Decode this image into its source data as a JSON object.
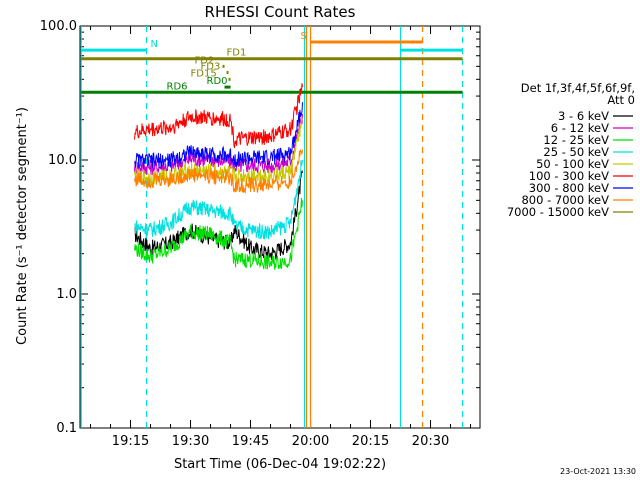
{
  "chart_data": {
    "type": "line",
    "title": "RHESSI Count Rates",
    "xlabel": "Start Time (06-Dec-04 19:02:22)",
    "ylabel": "Count Rate (s⁻¹ detector segment⁻¹)",
    "yscale": "log",
    "ylim": [
      0.1,
      100
    ],
    "xlim": [
      "19:02:22",
      "20:42:22"
    ],
    "x_ticks": [
      "19:15",
      "19:30",
      "19:45",
      "20:00",
      "20:15",
      "20:30"
    ],
    "y_ticks": [
      "0.1",
      "1.0",
      "10.0",
      "100.0"
    ],
    "legend_header": [
      "Det 1f,3f,4f,5f,6f,9f,",
      "Att 0"
    ],
    "series": [
      {
        "name": "3 - 6 keV",
        "color": "#000000",
        "x": [
          "19:16",
          "19:20",
          "19:25",
          "19:30",
          "19:35",
          "19:40",
          "19:41",
          "19:45",
          "19:50",
          "19:55",
          "19:58"
        ],
        "y": [
          2.8,
          2.2,
          2.4,
          3.0,
          2.6,
          2.4,
          3.0,
          2.2,
          2.0,
          2.4,
          8.0
        ]
      },
      {
        "name": "6 - 12 keV",
        "color": "#cc00cc",
        "x": [
          "19:16",
          "19:20",
          "19:25",
          "19:30",
          "19:35",
          "19:40",
          "19:41",
          "19:45",
          "19:50",
          "19:55",
          "19:58"
        ],
        "y": [
          9.0,
          8.8,
          9.0,
          10.2,
          10.0,
          9.8,
          9.0,
          9.2,
          9.0,
          9.8,
          22.0
        ]
      },
      {
        "name": "12 - 25 keV",
        "color": "#00e000",
        "x": [
          "19:16",
          "19:20",
          "19:25",
          "19:30",
          "19:35",
          "19:40",
          "19:41",
          "19:45",
          "19:50",
          "19:55",
          "19:58"
        ],
        "y": [
          2.2,
          1.9,
          2.2,
          2.9,
          2.8,
          2.4,
          1.8,
          1.8,
          1.7,
          1.8,
          5.0
        ]
      },
      {
        "name": "25 - 50 keV",
        "color": "#00e0e0",
        "x": [
          "19:16",
          "19:20",
          "19:25",
          "19:30",
          "19:35",
          "19:40",
          "19:41",
          "19:45",
          "19:50",
          "19:55",
          "19:58"
        ],
        "y": [
          3.2,
          3.0,
          3.4,
          4.5,
          4.2,
          4.0,
          3.2,
          3.0,
          2.9,
          3.4,
          10.0
        ]
      },
      {
        "name": "50 - 100 keV",
        "color": "#c8c800",
        "x": [
          "19:16",
          "19:20",
          "19:25",
          "19:30",
          "19:35",
          "19:40",
          "19:41",
          "19:45",
          "19:50",
          "19:55",
          "19:58"
        ],
        "y": [
          7.5,
          7.4,
          7.6,
          8.4,
          8.2,
          8.0,
          7.6,
          7.8,
          7.6,
          8.2,
          20.0
        ]
      },
      {
        "name": "100 - 300 keV",
        "color": "#ff0000",
        "x": [
          "19:16",
          "19:20",
          "19:25",
          "19:30",
          "19:35",
          "19:40",
          "19:41",
          "19:45",
          "19:50",
          "19:55",
          "19:58"
        ],
        "y": [
          16.0,
          17.0,
          17.5,
          21.0,
          20.5,
          20.0,
          14.0,
          14.5,
          15.0,
          17.0,
          35.0
        ]
      },
      {
        "name": "300 - 800 keV",
        "color": "#0000ff",
        "x": [
          "19:16",
          "19:20",
          "19:25",
          "19:30",
          "19:35",
          "19:40",
          "19:41",
          "19:45",
          "19:50",
          "19:55",
          "19:58"
        ],
        "y": [
          10.0,
          9.8,
          10.0,
          11.5,
          11.0,
          10.8,
          10.2,
          10.3,
          10.4,
          11.2,
          27.0
        ]
      },
      {
        "name": "800 - 7000 keV",
        "color": "#ff8000",
        "x": [
          "19:16",
          "19:20",
          "19:25",
          "19:30",
          "19:35",
          "19:40",
          "19:41",
          "19:45",
          "19:50",
          "19:55",
          "19:58"
        ],
        "y": [
          7.2,
          7.0,
          7.2,
          7.8,
          7.6,
          7.4,
          6.4,
          6.5,
          6.5,
          7.0,
          12.0
        ]
      },
      {
        "name": "7000 - 15000 keV",
        "color": "#808000",
        "x": [],
        "y": []
      }
    ],
    "vertical_lines": [
      {
        "time": "19:02:40",
        "color": "#00e0e0",
        "style": "solid"
      },
      {
        "time": "19:19:00",
        "color": "#00e0e0",
        "style": "dashed"
      },
      {
        "time": "19:58:30",
        "color": "#00e0e0",
        "style": "solid"
      },
      {
        "time": "19:59:00",
        "color": "#ff8000",
        "style": "solid"
      },
      {
        "time": "20:00:00",
        "color": "#ff8000",
        "style": "solid"
      },
      {
        "time": "20:22:30",
        "color": "#00e0e0",
        "style": "solid"
      },
      {
        "time": "20:28:00",
        "color": "#ff8000",
        "style": "dashed"
      },
      {
        "time": "20:38:00",
        "color": "#00e0e0",
        "style": "dashed"
      }
    ],
    "flag_bars": [
      {
        "label": "N",
        "color": "#00e0e0",
        "segments": [
          [
            "19:02:40",
            "19:19:00"
          ],
          [
            "20:22:30",
            "20:38:00"
          ]
        ],
        "level": 66,
        "label_at": "19:20:00"
      },
      {
        "label": "S",
        "color": "#ff8000",
        "segments": [
          [
            "20:00:00",
            "20:28:00"
          ]
        ],
        "level": 76,
        "label_at": "19:57:30"
      },
      {
        "label": "FD1",
        "color": "#808000",
        "segments": [
          [
            "19:02:40",
            "20:38:00"
          ]
        ],
        "level": 57,
        "label_at": "19:39:00"
      },
      {
        "label": "FD2",
        "color": "#808000",
        "segments": [
          [
            "19:38:00",
            "19:38:30"
          ]
        ],
        "level": 50,
        "label_at": "19:31:00"
      },
      {
        "label": "FD3",
        "color": "#808000",
        "segments": [
          [
            "19:39:00",
            "19:39:30"
          ]
        ],
        "level": 45,
        "label_at": "19:32:30"
      },
      {
        "label": "FD15",
        "color": "#808000",
        "segments": [
          [
            "19:39:30",
            "19:40:00"
          ]
        ],
        "level": 40,
        "label_at": "19:30:00"
      },
      {
        "label": "RD0",
        "color": "#008000",
        "segments": [
          [
            "19:38:30",
            "19:40:00"
          ]
        ],
        "level": 35,
        "label_at": "19:34:00"
      },
      {
        "label": "RD6",
        "color": "#008000",
        "segments": [
          [
            "19:02:40",
            "20:38:00"
          ]
        ],
        "level": 32,
        "label_at": "19:24:00"
      }
    ],
    "grid": false,
    "legend_position": "right"
  },
  "footer": {
    "date": "23-Oct-2021 13:30"
  }
}
